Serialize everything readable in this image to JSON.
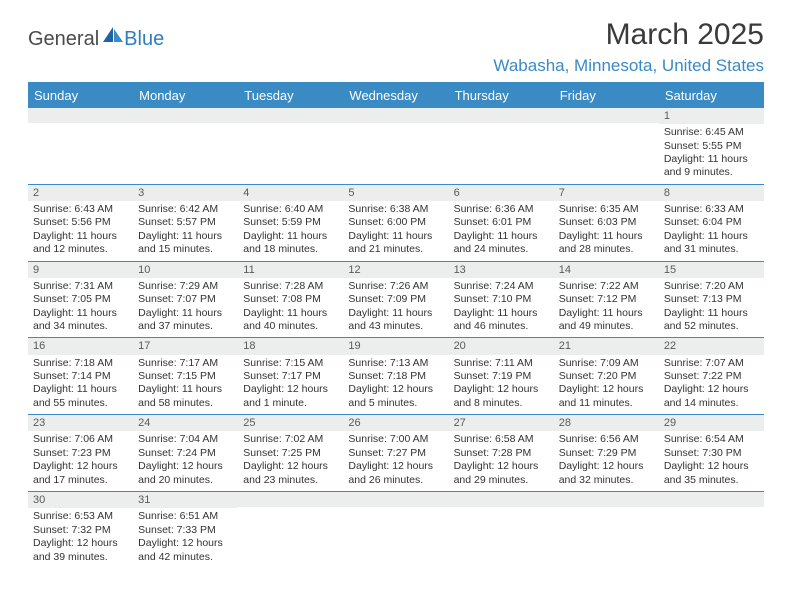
{
  "brand": {
    "part1": "General",
    "part2": "Blue"
  },
  "title": "March 2025",
  "location": "Wabasha, Minnesota, United States",
  "colors": {
    "accent": "#3a8ac4",
    "header_bg": "#3a8ac4",
    "header_text": "#ffffff",
    "daynum_bg": "#eceded",
    "text": "#333333",
    "bg": "#ffffff"
  },
  "weekdays": [
    "Sunday",
    "Monday",
    "Tuesday",
    "Wednesday",
    "Thursday",
    "Friday",
    "Saturday"
  ],
  "weeks": [
    [
      {
        "n": "",
        "lines": []
      },
      {
        "n": "",
        "lines": []
      },
      {
        "n": "",
        "lines": []
      },
      {
        "n": "",
        "lines": []
      },
      {
        "n": "",
        "lines": []
      },
      {
        "n": "",
        "lines": []
      },
      {
        "n": "1",
        "lines": [
          "Sunrise: 6:45 AM",
          "Sunset: 5:55 PM",
          "Daylight: 11 hours and 9 minutes."
        ]
      }
    ],
    [
      {
        "n": "2",
        "lines": [
          "Sunrise: 6:43 AM",
          "Sunset: 5:56 PM",
          "Daylight: 11 hours and 12 minutes."
        ]
      },
      {
        "n": "3",
        "lines": [
          "Sunrise: 6:42 AM",
          "Sunset: 5:57 PM",
          "Daylight: 11 hours and 15 minutes."
        ]
      },
      {
        "n": "4",
        "lines": [
          "Sunrise: 6:40 AM",
          "Sunset: 5:59 PM",
          "Daylight: 11 hours and 18 minutes."
        ]
      },
      {
        "n": "5",
        "lines": [
          "Sunrise: 6:38 AM",
          "Sunset: 6:00 PM",
          "Daylight: 11 hours and 21 minutes."
        ]
      },
      {
        "n": "6",
        "lines": [
          "Sunrise: 6:36 AM",
          "Sunset: 6:01 PM",
          "Daylight: 11 hours and 24 minutes."
        ]
      },
      {
        "n": "7",
        "lines": [
          "Sunrise: 6:35 AM",
          "Sunset: 6:03 PM",
          "Daylight: 11 hours and 28 minutes."
        ]
      },
      {
        "n": "8",
        "lines": [
          "Sunrise: 6:33 AM",
          "Sunset: 6:04 PM",
          "Daylight: 11 hours and 31 minutes."
        ]
      }
    ],
    [
      {
        "n": "9",
        "lines": [
          "Sunrise: 7:31 AM",
          "Sunset: 7:05 PM",
          "Daylight: 11 hours and 34 minutes."
        ]
      },
      {
        "n": "10",
        "lines": [
          "Sunrise: 7:29 AM",
          "Sunset: 7:07 PM",
          "Daylight: 11 hours and 37 minutes."
        ]
      },
      {
        "n": "11",
        "lines": [
          "Sunrise: 7:28 AM",
          "Sunset: 7:08 PM",
          "Daylight: 11 hours and 40 minutes."
        ]
      },
      {
        "n": "12",
        "lines": [
          "Sunrise: 7:26 AM",
          "Sunset: 7:09 PM",
          "Daylight: 11 hours and 43 minutes."
        ]
      },
      {
        "n": "13",
        "lines": [
          "Sunrise: 7:24 AM",
          "Sunset: 7:10 PM",
          "Daylight: 11 hours and 46 minutes."
        ]
      },
      {
        "n": "14",
        "lines": [
          "Sunrise: 7:22 AM",
          "Sunset: 7:12 PM",
          "Daylight: 11 hours and 49 minutes."
        ]
      },
      {
        "n": "15",
        "lines": [
          "Sunrise: 7:20 AM",
          "Sunset: 7:13 PM",
          "Daylight: 11 hours and 52 minutes."
        ]
      }
    ],
    [
      {
        "n": "16",
        "lines": [
          "Sunrise: 7:18 AM",
          "Sunset: 7:14 PM",
          "Daylight: 11 hours and 55 minutes."
        ]
      },
      {
        "n": "17",
        "lines": [
          "Sunrise: 7:17 AM",
          "Sunset: 7:15 PM",
          "Daylight: 11 hours and 58 minutes."
        ]
      },
      {
        "n": "18",
        "lines": [
          "Sunrise: 7:15 AM",
          "Sunset: 7:17 PM",
          "Daylight: 12 hours and 1 minute."
        ]
      },
      {
        "n": "19",
        "lines": [
          "Sunrise: 7:13 AM",
          "Sunset: 7:18 PM",
          "Daylight: 12 hours and 5 minutes."
        ]
      },
      {
        "n": "20",
        "lines": [
          "Sunrise: 7:11 AM",
          "Sunset: 7:19 PM",
          "Daylight: 12 hours and 8 minutes."
        ]
      },
      {
        "n": "21",
        "lines": [
          "Sunrise: 7:09 AM",
          "Sunset: 7:20 PM",
          "Daylight: 12 hours and 11 minutes."
        ]
      },
      {
        "n": "22",
        "lines": [
          "Sunrise: 7:07 AM",
          "Sunset: 7:22 PM",
          "Daylight: 12 hours and 14 minutes."
        ]
      }
    ],
    [
      {
        "n": "23",
        "lines": [
          "Sunrise: 7:06 AM",
          "Sunset: 7:23 PM",
          "Daylight: 12 hours and 17 minutes."
        ]
      },
      {
        "n": "24",
        "lines": [
          "Sunrise: 7:04 AM",
          "Sunset: 7:24 PM",
          "Daylight: 12 hours and 20 minutes."
        ]
      },
      {
        "n": "25",
        "lines": [
          "Sunrise: 7:02 AM",
          "Sunset: 7:25 PM",
          "Daylight: 12 hours and 23 minutes."
        ]
      },
      {
        "n": "26",
        "lines": [
          "Sunrise: 7:00 AM",
          "Sunset: 7:27 PM",
          "Daylight: 12 hours and 26 minutes."
        ]
      },
      {
        "n": "27",
        "lines": [
          "Sunrise: 6:58 AM",
          "Sunset: 7:28 PM",
          "Daylight: 12 hours and 29 minutes."
        ]
      },
      {
        "n": "28",
        "lines": [
          "Sunrise: 6:56 AM",
          "Sunset: 7:29 PM",
          "Daylight: 12 hours and 32 minutes."
        ]
      },
      {
        "n": "29",
        "lines": [
          "Sunrise: 6:54 AM",
          "Sunset: 7:30 PM",
          "Daylight: 12 hours and 35 minutes."
        ]
      }
    ],
    [
      {
        "n": "30",
        "lines": [
          "Sunrise: 6:53 AM",
          "Sunset: 7:32 PM",
          "Daylight: 12 hours and 39 minutes."
        ]
      },
      {
        "n": "31",
        "lines": [
          "Sunrise: 6:51 AM",
          "Sunset: 7:33 PM",
          "Daylight: 12 hours and 42 minutes."
        ]
      },
      {
        "n": "",
        "lines": []
      },
      {
        "n": "",
        "lines": []
      },
      {
        "n": "",
        "lines": []
      },
      {
        "n": "",
        "lines": []
      },
      {
        "n": "",
        "lines": []
      }
    ]
  ]
}
